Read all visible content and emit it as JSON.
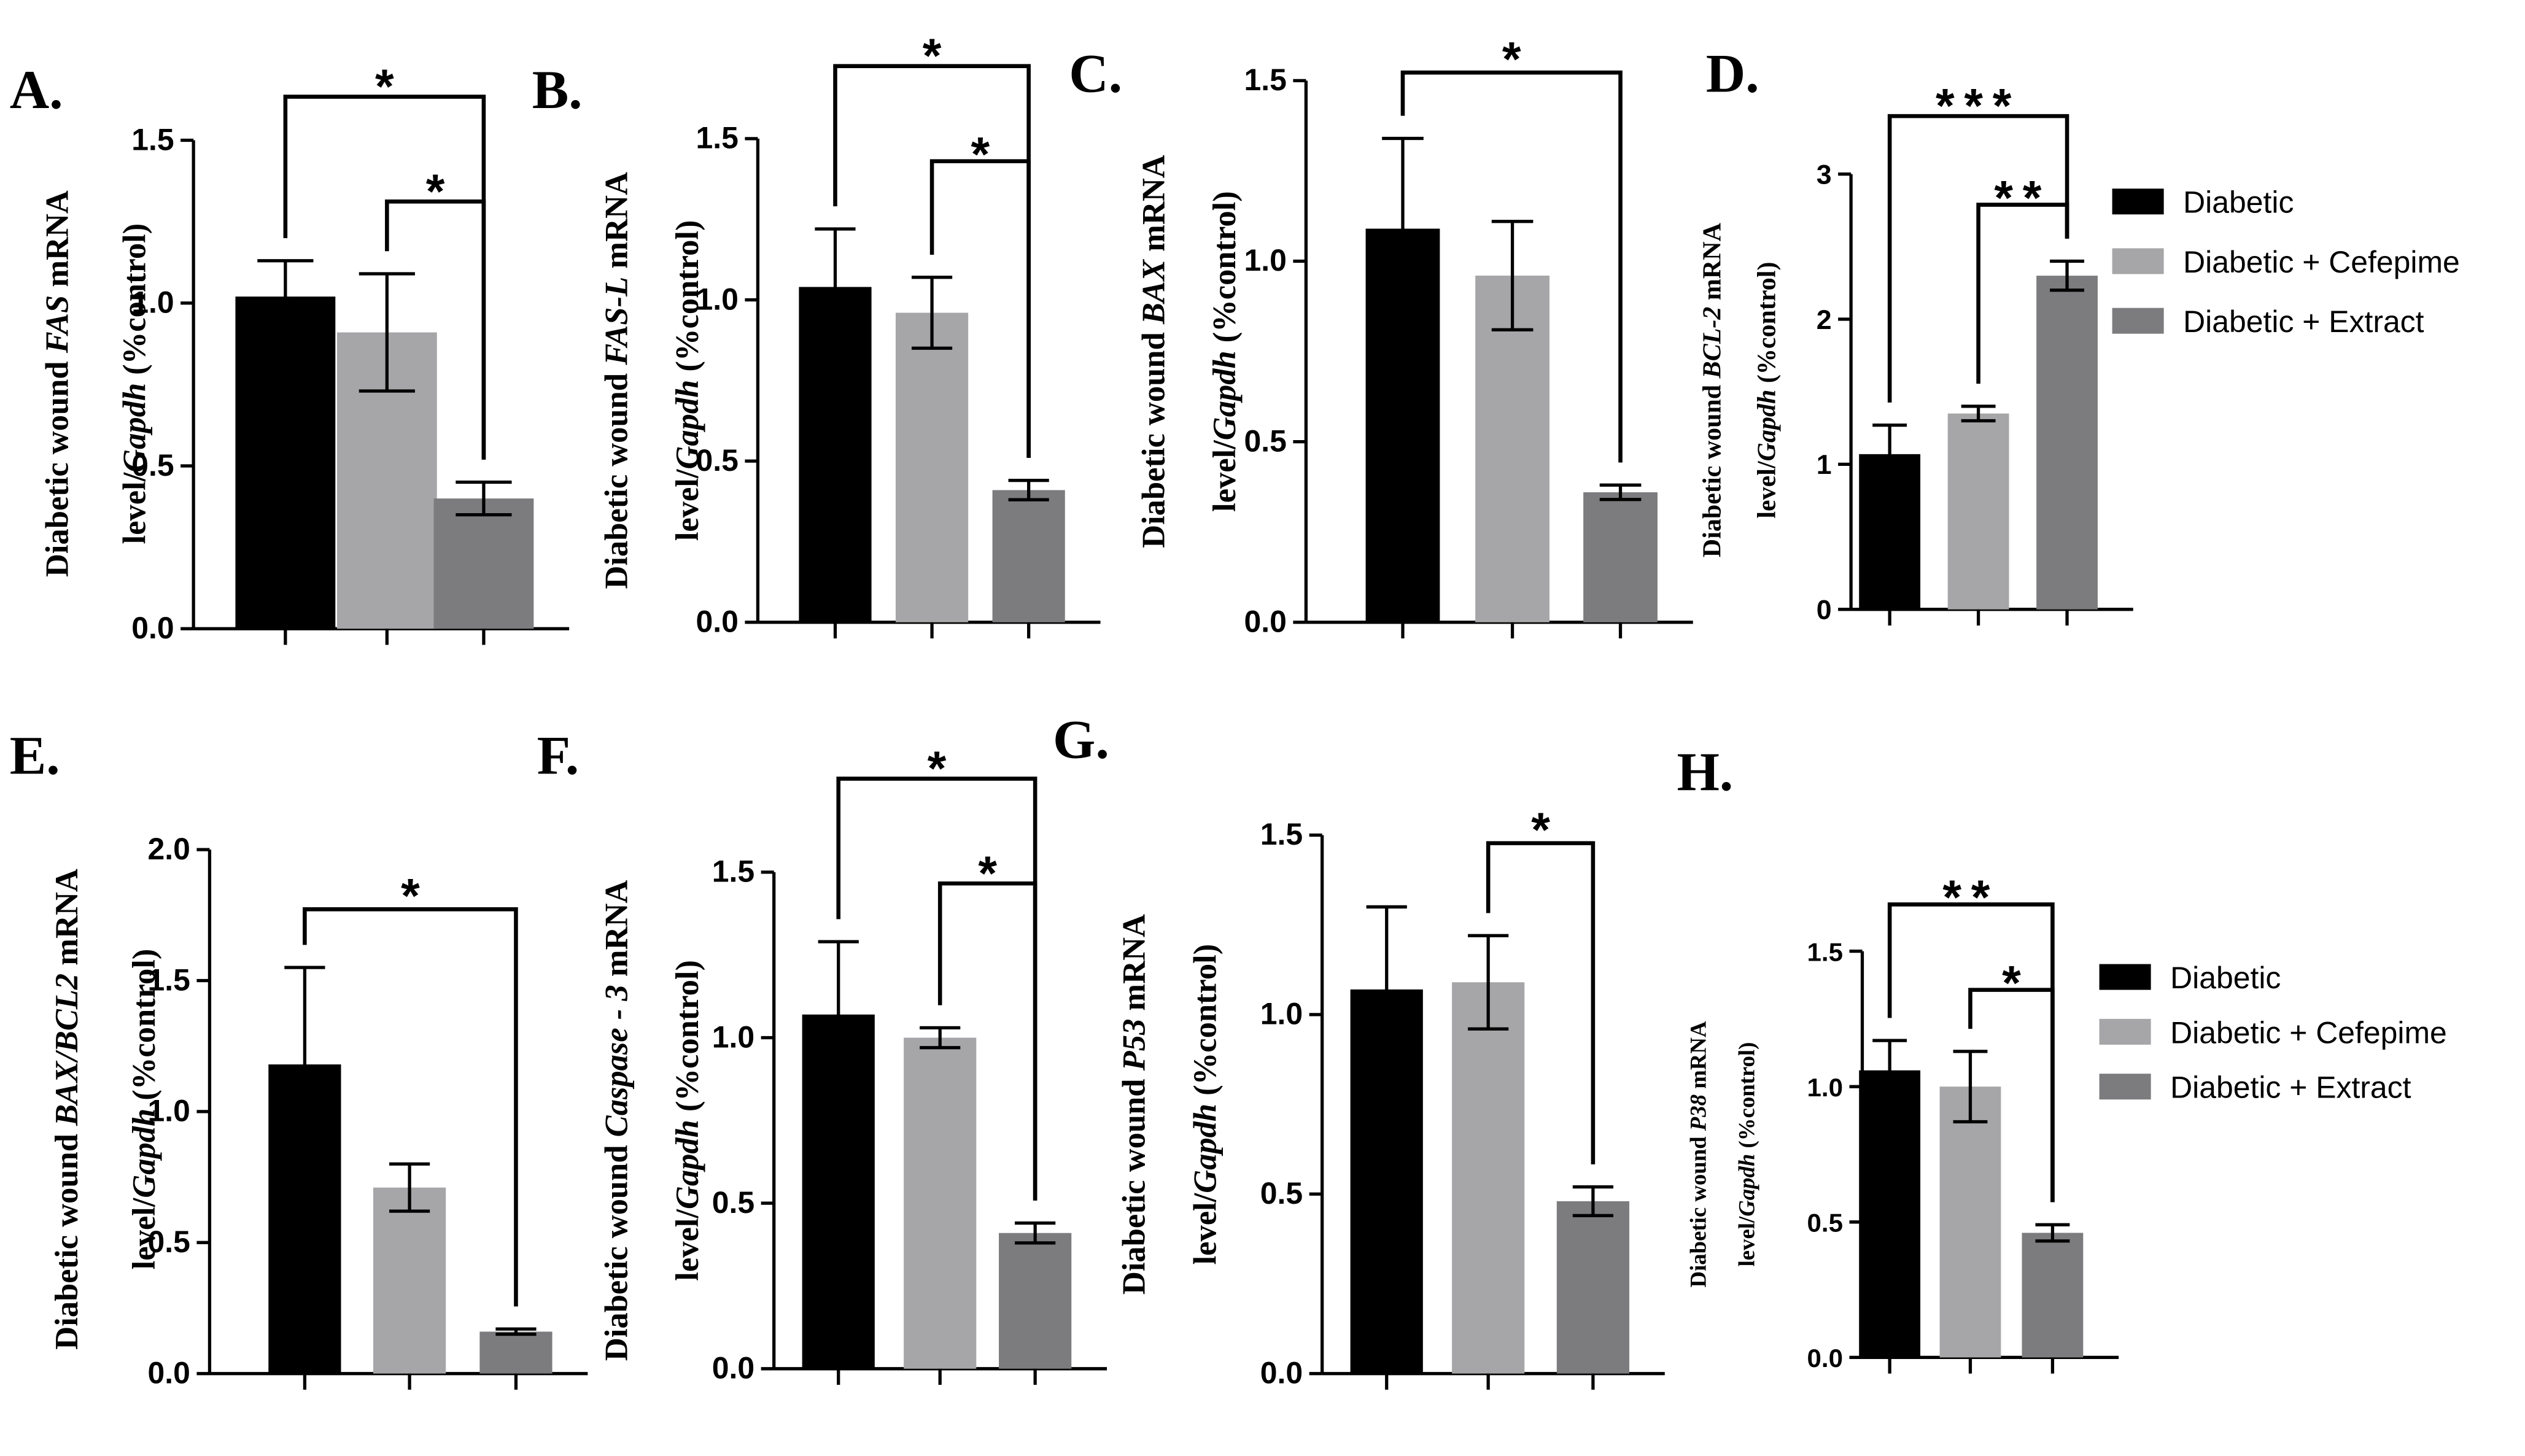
{
  "legend": {
    "items": [
      {
        "label": "Diabetic",
        "color": "#000000"
      },
      {
        "label": "Diabetic + Cefepime",
        "color": "#a6a6a8"
      },
      {
        "label": "Diabetic + Extract",
        "color": "#7c7c7e"
      }
    ]
  },
  "chart_data": [
    {
      "type": "bar",
      "panel": "A.",
      "ylabel_line1": [
        "Diabetic wound ",
        "FAS",
        " mRNA"
      ],
      "ylabel_line2": [
        "level/",
        "Gapdh",
        "  (%control)"
      ],
      "categories": [
        "Diabetic",
        "Diabetic + Cefepime",
        "Diabetic + Extract"
      ],
      "values": [
        1.02,
        0.91,
        0.4
      ],
      "errors": [
        0.11,
        0.18,
        0.05
      ],
      "ylim": [
        0,
        1.5
      ],
      "yticks": [
        "0.0",
        "0.5",
        "1.0",
        "1.5"
      ],
      "annotations": [
        {
          "from": 0,
          "to": 2,
          "label": "*"
        },
        {
          "from": 1,
          "to": 2,
          "label": "*"
        }
      ]
    },
    {
      "type": "bar",
      "panel": "B.",
      "ylabel_line1": [
        "Diabetic wound ",
        "FAS-L",
        " mRNA"
      ],
      "ylabel_line2": [
        "level/",
        "Gapdh",
        "  (%control)"
      ],
      "categories": [
        "Diabetic",
        "Diabetic + Cefepime",
        "Diabetic + Extract"
      ],
      "values": [
        1.04,
        0.96,
        0.41
      ],
      "errors": [
        0.18,
        0.11,
        0.03
      ],
      "ylim": [
        0,
        1.5
      ],
      "yticks": [
        "0.0",
        "0.5",
        "1.0",
        "1.5"
      ],
      "annotations": [
        {
          "from": 0,
          "to": 2,
          "label": "*"
        },
        {
          "from": 1,
          "to": 2,
          "label": "*"
        }
      ]
    },
    {
      "type": "bar",
      "panel": "C.",
      "ylabel_line1": [
        "Diabetic wound ",
        "BAX",
        " mRNA"
      ],
      "ylabel_line2": [
        "level/",
        "Gapdh",
        "  (%control)"
      ],
      "categories": [
        "Diabetic",
        "Diabetic + Cefepime",
        "Diabetic + Extract"
      ],
      "values": [
        1.09,
        0.96,
        0.36
      ],
      "errors": [
        0.25,
        0.15,
        0.02
      ],
      "ylim": [
        0,
        1.5
      ],
      "yticks": [
        "0.0",
        "0.5",
        "1.0",
        "1.5"
      ],
      "annotations": [
        {
          "from": 0,
          "to": 2,
          "label": "*"
        }
      ]
    },
    {
      "type": "bar",
      "panel": "D.",
      "ylabel_line1": [
        "Diabetic wound ",
        "BCL-2",
        " mRNA"
      ],
      "ylabel_line2": [
        "level/",
        "Gapdh",
        "  (%control)"
      ],
      "categories": [
        "Diabetic",
        "Diabetic + Cefepime",
        "Diabetic + Extract"
      ],
      "values": [
        1.07,
        1.35,
        2.3
      ],
      "errors": [
        0.2,
        0.05,
        0.1
      ],
      "ylim": [
        0,
        3
      ],
      "yticks": [
        "0",
        "1",
        "2",
        "3"
      ],
      "annotations": [
        {
          "from": 0,
          "to": 2,
          "label": "***"
        },
        {
          "from": 1,
          "to": 2,
          "label": "**"
        }
      ],
      "legend_position": "right"
    },
    {
      "type": "bar",
      "panel": "E.",
      "ylabel_line1": [
        "Diabetic wound ",
        "BAX/BCL2",
        " mRNA"
      ],
      "ylabel_line2": [
        "level/",
        "Gapdh",
        "  (%control)"
      ],
      "categories": [
        "Diabetic",
        "Diabetic + Cefepime",
        "Diabetic + Extract"
      ],
      "values": [
        1.18,
        0.71,
        0.16
      ],
      "errors": [
        0.37,
        0.09,
        0.01
      ],
      "ylim": [
        0,
        2.0
      ],
      "yticks": [
        "0.0",
        "0.5",
        "1.0",
        "1.5",
        "2.0"
      ],
      "annotations": [
        {
          "from": 0,
          "to": 2,
          "label": "*"
        }
      ]
    },
    {
      "type": "bar",
      "panel": "F.",
      "ylabel_line1": [
        "Diabetic wound ",
        "Caspase - 3",
        " mRNA"
      ],
      "ylabel_line2": [
        "level/",
        "Gapdh",
        "  (%control)"
      ],
      "categories": [
        "Diabetic",
        "Diabetic + Cefepime",
        "Diabetic + Extract"
      ],
      "values": [
        1.07,
        1.0,
        0.41
      ],
      "errors": [
        0.22,
        0.03,
        0.03
      ],
      "ylim": [
        0,
        1.5
      ],
      "yticks": [
        "0.0",
        "0.5",
        "1.0",
        "1.5"
      ],
      "annotations": [
        {
          "from": 0,
          "to": 2,
          "label": "*"
        },
        {
          "from": 1,
          "to": 2,
          "label": "*"
        }
      ]
    },
    {
      "type": "bar",
      "panel": "G.",
      "ylabel_line1": [
        "Diabetic wound ",
        "P53",
        " mRNA"
      ],
      "ylabel_line2": [
        "level/",
        "Gapdh",
        "  (%control)"
      ],
      "categories": [
        "Diabetic",
        "Diabetic + Cefepime",
        "Diabetic + Extract"
      ],
      "values": [
        1.07,
        1.09,
        0.48
      ],
      "errors": [
        0.23,
        0.13,
        0.04
      ],
      "ylim": [
        0,
        1.5
      ],
      "yticks": [
        "0.0",
        "0.5",
        "1.0",
        "1.5"
      ],
      "annotations": [
        {
          "from": 1,
          "to": 2,
          "label": "*"
        }
      ]
    },
    {
      "type": "bar",
      "panel": "H.",
      "ylabel_line1": [
        "Diabetic wound ",
        "P38",
        " mRNA"
      ],
      "ylabel_line2": [
        "level/",
        "Gapdh",
        "  (%control)"
      ],
      "categories": [
        "Diabetic",
        "Diabetic + Cefepime",
        "Diabetic + Extract"
      ],
      "values": [
        1.06,
        1.0,
        0.46
      ],
      "errors": [
        0.11,
        0.13,
        0.03
      ],
      "ylim": [
        0,
        1.5
      ],
      "yticks": [
        "0.0",
        "0.5",
        "1.0",
        "1.5"
      ],
      "annotations": [
        {
          "from": 0,
          "to": 2,
          "label": "**"
        },
        {
          "from": 1,
          "to": 2,
          "label": "*"
        }
      ],
      "legend_position": "right"
    }
  ]
}
